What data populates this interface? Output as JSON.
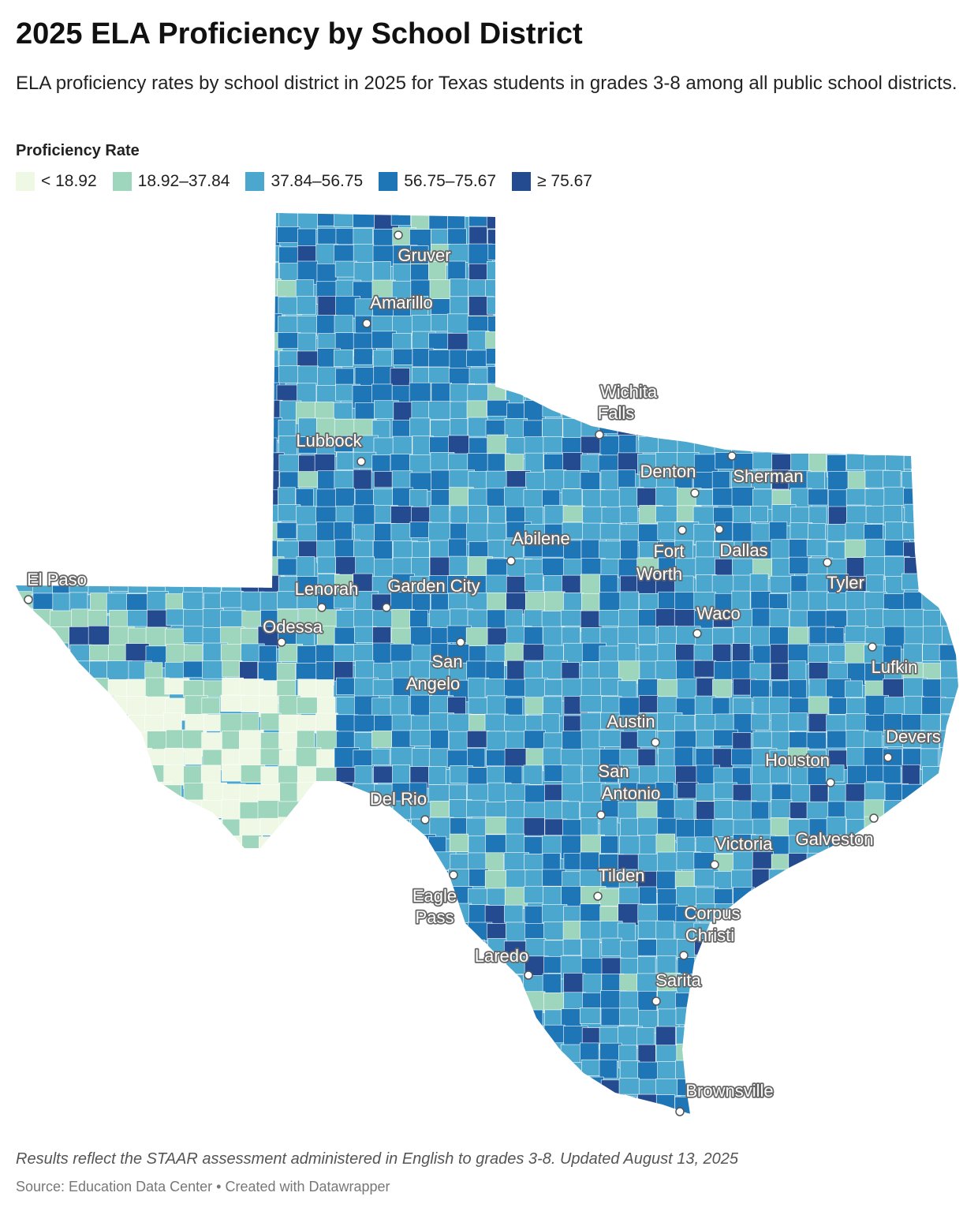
{
  "header": {
    "title": "2025 ELA Proficiency by School District",
    "subtitle": "ELA proficiency rates by school district in 2025 for Texas students in grades 3-8 among all public school districts."
  },
  "legend": {
    "title": "Proficiency Rate",
    "items": [
      {
        "label": "< 18.92",
        "color": "#eef8e4"
      },
      {
        "label": "18.92–37.84",
        "color": "#9dd6bd"
      },
      {
        "label": "37.84–56.75",
        "color": "#4ba7cd"
      },
      {
        "label": "56.75–75.67",
        "color": "#1f76b7"
      },
      {
        "label": "≥ 75.67",
        "color": "#244b8f"
      }
    ]
  },
  "map": {
    "cities": [
      {
        "label": [
          "Gruver"
        ]
      },
      {
        "label": [
          "Amarillo"
        ]
      },
      {
        "label": [
          "Wichita",
          "Falls"
        ]
      },
      {
        "label": [
          "Lubbock"
        ]
      },
      {
        "label": [
          "Denton"
        ]
      },
      {
        "label": [
          "Sherman"
        ]
      },
      {
        "label": [
          "Abilene"
        ]
      },
      {
        "label": [
          "Fort",
          "Worth"
        ]
      },
      {
        "label": [
          "Dallas"
        ]
      },
      {
        "label": [
          "Tyler"
        ]
      },
      {
        "label": [
          "El Paso"
        ]
      },
      {
        "label": [
          "Lenorah"
        ]
      },
      {
        "label": [
          "Garden City"
        ]
      },
      {
        "label": [
          "Odessa"
        ]
      },
      {
        "label": [
          "Waco"
        ]
      },
      {
        "label": [
          "Lufkin"
        ]
      },
      {
        "label": [
          "San",
          "Angelo"
        ]
      },
      {
        "label": [
          "Austin"
        ]
      },
      {
        "label": [
          "Devers"
        ]
      },
      {
        "label": [
          "Houston"
        ]
      },
      {
        "label": [
          "San",
          "Antonio"
        ]
      },
      {
        "label": [
          "Del Rio"
        ]
      },
      {
        "label": [
          "Galveston"
        ]
      },
      {
        "label": [
          "Victoria"
        ]
      },
      {
        "label": [
          "Eagle",
          "Pass"
        ]
      },
      {
        "label": [
          "Tilden"
        ]
      },
      {
        "label": [
          "Corpus",
          "Christi"
        ]
      },
      {
        "label": [
          "Laredo"
        ]
      },
      {
        "label": [
          "Sarita"
        ]
      },
      {
        "label": [
          "Brownsville"
        ]
      }
    ]
  },
  "footer": {
    "note": "Results reflect the STAAR assessment administered in English to grades 3-8. Updated August 13, 2025",
    "source": "Source: Education Data Center • Created with Datawrapper"
  }
}
